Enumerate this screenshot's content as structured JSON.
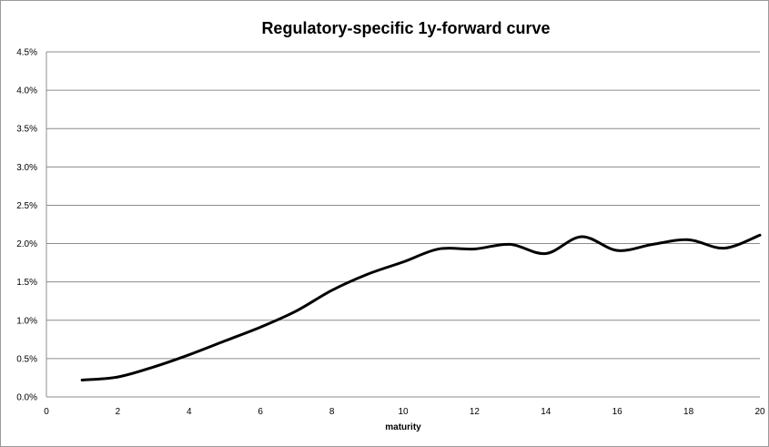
{
  "chart_data": {
    "type": "line",
    "title": "Regulatory-specific 1y-forward curve",
    "xlabel": "maturity",
    "ylabel": "",
    "xlim": [
      0,
      20
    ],
    "ylim": [
      0,
      4.5
    ],
    "x_ticks": [
      0,
      2,
      4,
      6,
      8,
      10,
      12,
      14,
      16,
      18,
      20
    ],
    "y_ticks": [
      "0.0%",
      "0.5%",
      "1.0%",
      "1.5%",
      "2.0%",
      "2.5%",
      "3.0%",
      "3.5%",
      "4.0%",
      "4.5%"
    ],
    "y_tick_values": [
      0,
      0.5,
      1.0,
      1.5,
      2.0,
      2.5,
      3.0,
      3.5,
      4.0,
      4.5
    ],
    "grid": "horizontal",
    "legend": "none",
    "series": [
      {
        "x": [
          1,
          2,
          3,
          4,
          5,
          6,
          7,
          8,
          9,
          10,
          11,
          12,
          13,
          14,
          15,
          16,
          17,
          18,
          19,
          20
        ],
        "values": [
          0.22,
          0.26,
          0.39,
          0.55,
          0.73,
          0.91,
          1.12,
          1.39,
          1.6,
          1.76,
          1.93,
          1.93,
          1.99,
          1.87,
          2.09,
          1.91,
          1.99,
          2.05,
          1.94,
          2.11
        ]
      }
    ],
    "line_color": "#000000",
    "grid_color": "#8c8c8c"
  }
}
